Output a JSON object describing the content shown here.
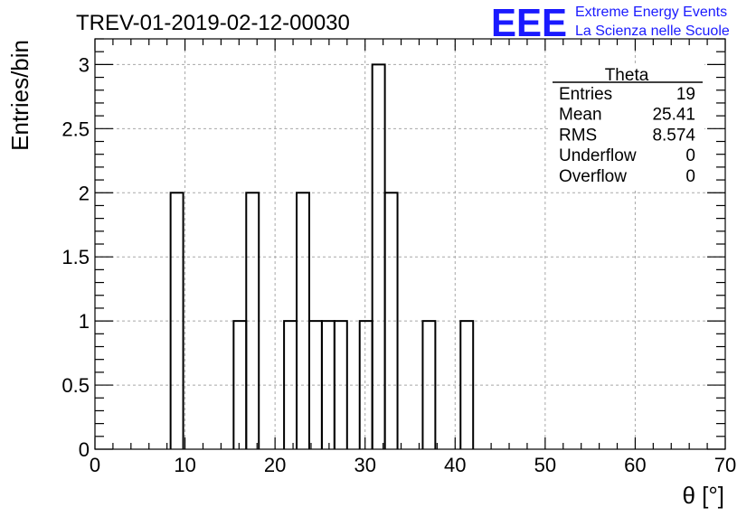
{
  "chart_data": {
    "type": "bar",
    "title": "TREV-01-2019-02-12-00030",
    "xlabel": "θ [°]",
    "ylabel": "Entries/bin",
    "xlim": [
      0,
      70
    ],
    "ylim": [
      0,
      3.2
    ],
    "grid": true,
    "bin_width": 1.4,
    "bins": [
      {
        "x": 8.4,
        "value": 2
      },
      {
        "x": 15.4,
        "value": 1
      },
      {
        "x": 16.8,
        "value": 2
      },
      {
        "x": 21.0,
        "value": 1
      },
      {
        "x": 22.4,
        "value": 2
      },
      {
        "x": 23.8,
        "value": 1
      },
      {
        "x": 25.2,
        "value": 1
      },
      {
        "x": 26.6,
        "value": 1
      },
      {
        "x": 29.4,
        "value": 1
      },
      {
        "x": 30.8,
        "value": 3
      },
      {
        "x": 32.2,
        "value": 2
      },
      {
        "x": 36.4,
        "value": 1
      },
      {
        "x": 40.6,
        "value": 1
      }
    ],
    "xticks": [
      "0",
      "10",
      "20",
      "30",
      "40",
      "50",
      "60",
      "70"
    ],
    "xtick_values": [
      0,
      10,
      20,
      30,
      40,
      50,
      60,
      70
    ],
    "yticks": [
      "0",
      "0.5",
      "1",
      "1.5",
      "2",
      "2.5",
      "3"
    ],
    "ytick_values": [
      0,
      0.5,
      1,
      1.5,
      2,
      2.5,
      3
    ],
    "stats_box": {
      "name": "Theta",
      "rows": [
        {
          "label": "Entries",
          "value": "19"
        },
        {
          "label": "Mean",
          "value": "25.41"
        },
        {
          "label": "RMS",
          "value": "8.574"
        },
        {
          "label": "Underflow",
          "value": "0"
        },
        {
          "label": "Overflow",
          "value": "0"
        }
      ]
    }
  },
  "logo": {
    "mark": "EEE",
    "line1": "Extreme Energy Events",
    "line2": "La Scienza nelle Scuole",
    "color": "#1a1aff"
  }
}
